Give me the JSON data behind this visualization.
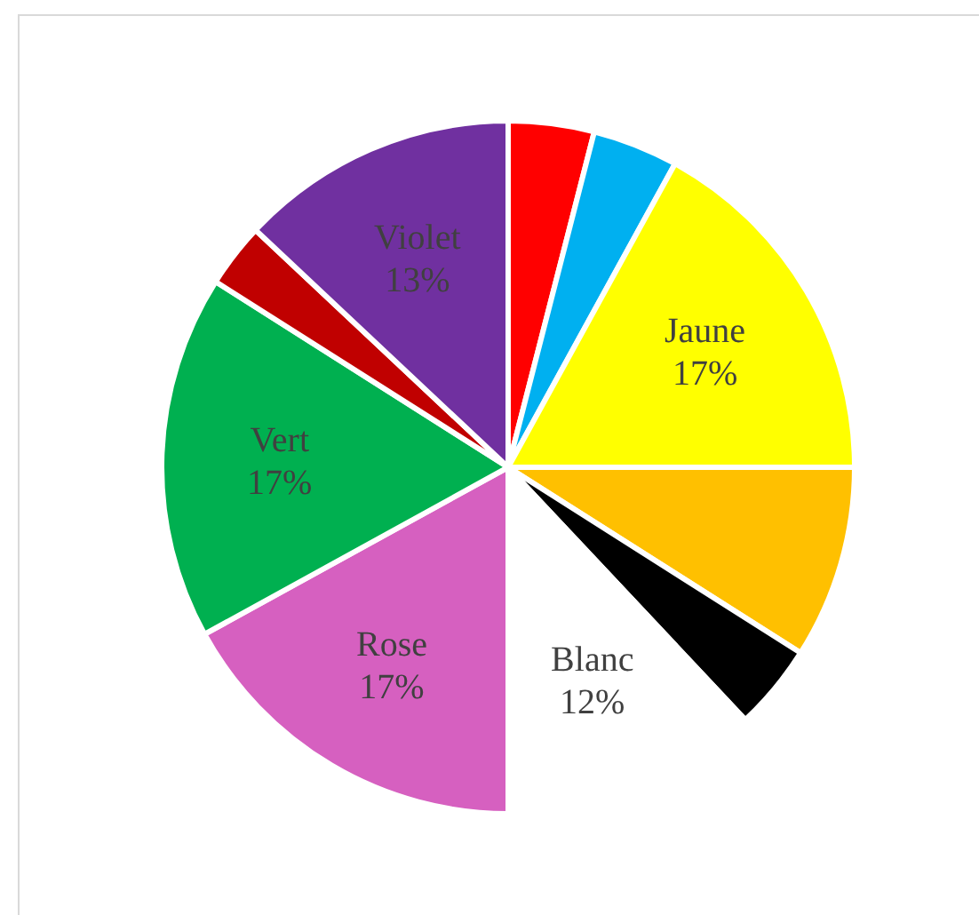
{
  "chart_data": {
    "type": "pie",
    "categories": [
      null,
      null,
      "Jaune",
      null,
      null,
      "Blanc",
      "Rose",
      "Vert",
      null,
      "Violet"
    ],
    "values": [
      4,
      4,
      17,
      9,
      4,
      12,
      17,
      17,
      3,
      13
    ],
    "colors": [
      "#ff0000",
      "#00b0f0",
      "#ffff00",
      "#ffc000",
      "#000000",
      "#ffffff",
      "#d660c0",
      "#00b050",
      "#c00000",
      "#7030a0"
    ],
    "value_labels": [
      null,
      null,
      "17%",
      null,
      null,
      "12%",
      "17%",
      "17%",
      null,
      "13%"
    ],
    "legend": false
  }
}
